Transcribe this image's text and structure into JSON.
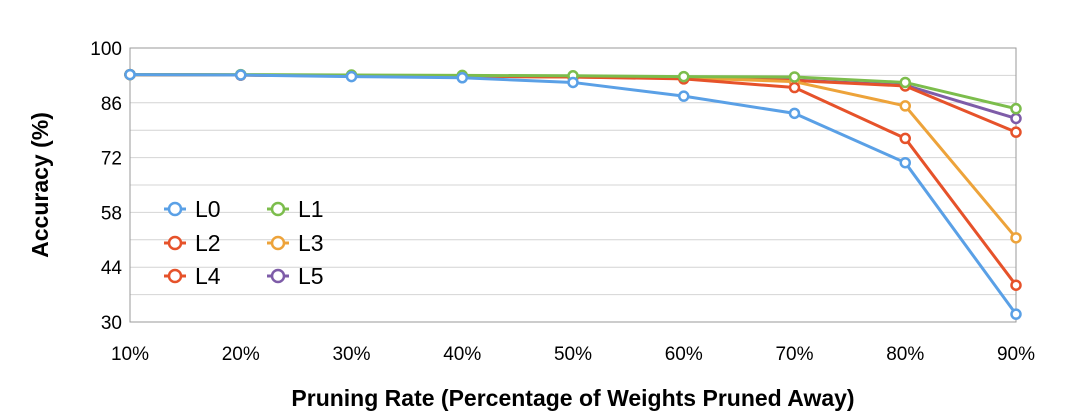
{
  "chart_data": {
    "type": "line",
    "title": "",
    "xlabel": "Pruning Rate (Percentage of Weights Pruned Away)",
    "ylabel": "Accuracy (%)",
    "x": [
      "10%",
      "20%",
      "30%",
      "40%",
      "50%",
      "60%",
      "70%",
      "80%",
      "90%"
    ],
    "ylim": [
      30,
      100
    ],
    "yticks": [
      "30",
      "44",
      "58",
      "72",
      "86",
      "100"
    ],
    "grid": "horizontal",
    "legend_position": "lower-left",
    "series": [
      {
        "name": "L0",
        "color": "#5aa0e6",
        "values": [
          93.2,
          93.1,
          92.7,
          92.4,
          91.2,
          87.7,
          83.3,
          70.7,
          32.0
        ]
      },
      {
        "name": "L1",
        "color": "#7cbd4c",
        "values": [
          93.2,
          93.2,
          93.1,
          93.0,
          92.9,
          92.7,
          92.6,
          91.2,
          84.5
        ]
      },
      {
        "name": "L2",
        "color": "#e6522a",
        "values": [
          93.2,
          93.1,
          92.8,
          92.8,
          92.6,
          92.1,
          89.9,
          76.9,
          39.4
        ]
      },
      {
        "name": "L3",
        "color": "#eda33a",
        "values": [
          93.2,
          93.1,
          92.9,
          92.8,
          92.6,
          92.4,
          91.4,
          85.2,
          51.5
        ]
      },
      {
        "name": "L4",
        "color": "#e6522a",
        "values": [
          93.2,
          93.1,
          92.9,
          92.8,
          92.6,
          92.4,
          91.7,
          90.3,
          78.5
        ]
      },
      {
        "name": "L5",
        "color": "#7e5ca8",
        "values": [
          93.2,
          93.1,
          92.9,
          92.8,
          92.6,
          92.4,
          91.8,
          90.5,
          82.0
        ]
      }
    ]
  }
}
